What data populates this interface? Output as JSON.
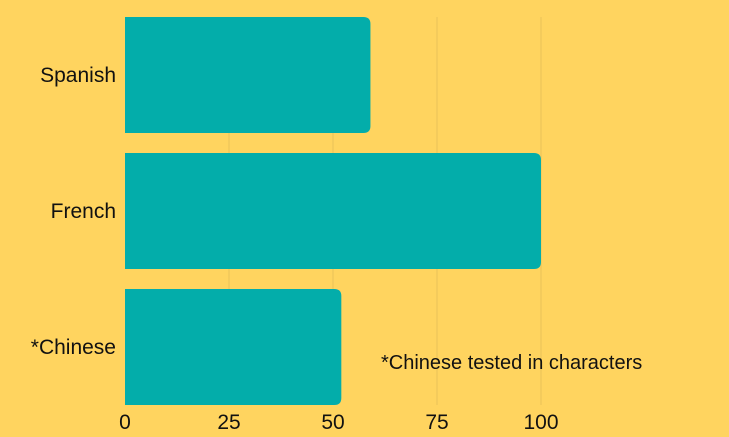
{
  "chart_data": {
    "type": "bar",
    "orientation": "horizontal",
    "categories": [
      "Spanish",
      "French",
      "*Chinese"
    ],
    "values": [
      59,
      100,
      52
    ],
    "xlim": [
      0,
      100
    ],
    "xticks": [
      0,
      25,
      50,
      75,
      100
    ],
    "grid": true,
    "annotation": "*Chinese tested in characters"
  },
  "colors": {
    "background": "#FFD45F",
    "bar": "#03ADAA",
    "grid": "#E8C25A",
    "text": "#111111"
  }
}
